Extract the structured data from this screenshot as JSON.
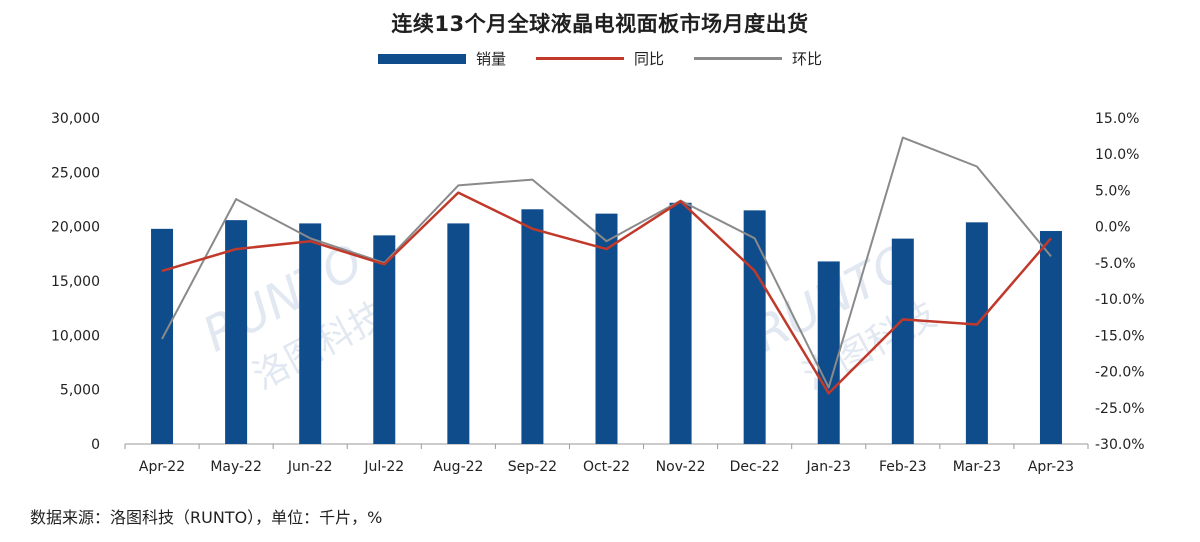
{
  "chart_data": {
    "type": "bar",
    "title": "连续13个月全球液晶电视面板市场月度出货",
    "categories": [
      "Apr-22",
      "May-22",
      "Jun-22",
      "Jul-22",
      "Aug-22",
      "Sep-22",
      "Oct-22",
      "Nov-22",
      "Dec-22",
      "Jan-23",
      "Feb-23",
      "Mar-23",
      "Apr-23"
    ],
    "series": [
      {
        "name": "销量",
        "kind": "bar",
        "axis": "left",
        "color": "#0f4c8c",
        "values": [
          19800,
          20600,
          20300,
          19200,
          20300,
          21600,
          21200,
          22200,
          21500,
          16800,
          18900,
          20400,
          19600
        ]
      },
      {
        "name": "同比",
        "kind": "line",
        "axis": "right",
        "color": "#c0392b",
        "values": [
          -6.1,
          -3.1,
          -2.0,
          -5.2,
          4.7,
          -0.3,
          -3.1,
          3.5,
          -6.1,
          -23.0,
          -12.8,
          -13.5,
          -1.6
        ]
      },
      {
        "name": "环比",
        "kind": "line",
        "axis": "right",
        "color": "#8a8a8a",
        "values": [
          -15.5,
          3.8,
          -1.6,
          -5.0,
          5.7,
          6.5,
          -2.0,
          3.6,
          -1.6,
          -22.2,
          12.3,
          8.3,
          -4.1
        ]
      }
    ],
    "left_axis": {
      "min": 0,
      "max": 30000,
      "step": 5000,
      "tick_labels": [
        "0",
        "5,000",
        "10,000",
        "15,000",
        "20,000",
        "25,000",
        "30,000"
      ]
    },
    "right_axis": {
      "min": -30,
      "max": 15,
      "step": 5,
      "tick_labels": [
        "-30.0%",
        "-25.0%",
        "-20.0%",
        "-15.0%",
        "-10.0%",
        "-5.0%",
        "0.0%",
        "5.0%",
        "10.0%",
        "15.0%"
      ]
    },
    "legend_position": "top-center",
    "grid": false,
    "watermark": "RUNTO 洛图科技"
  },
  "source_note": "数据来源：洛图科技（RUNTO），单位：千片，%"
}
